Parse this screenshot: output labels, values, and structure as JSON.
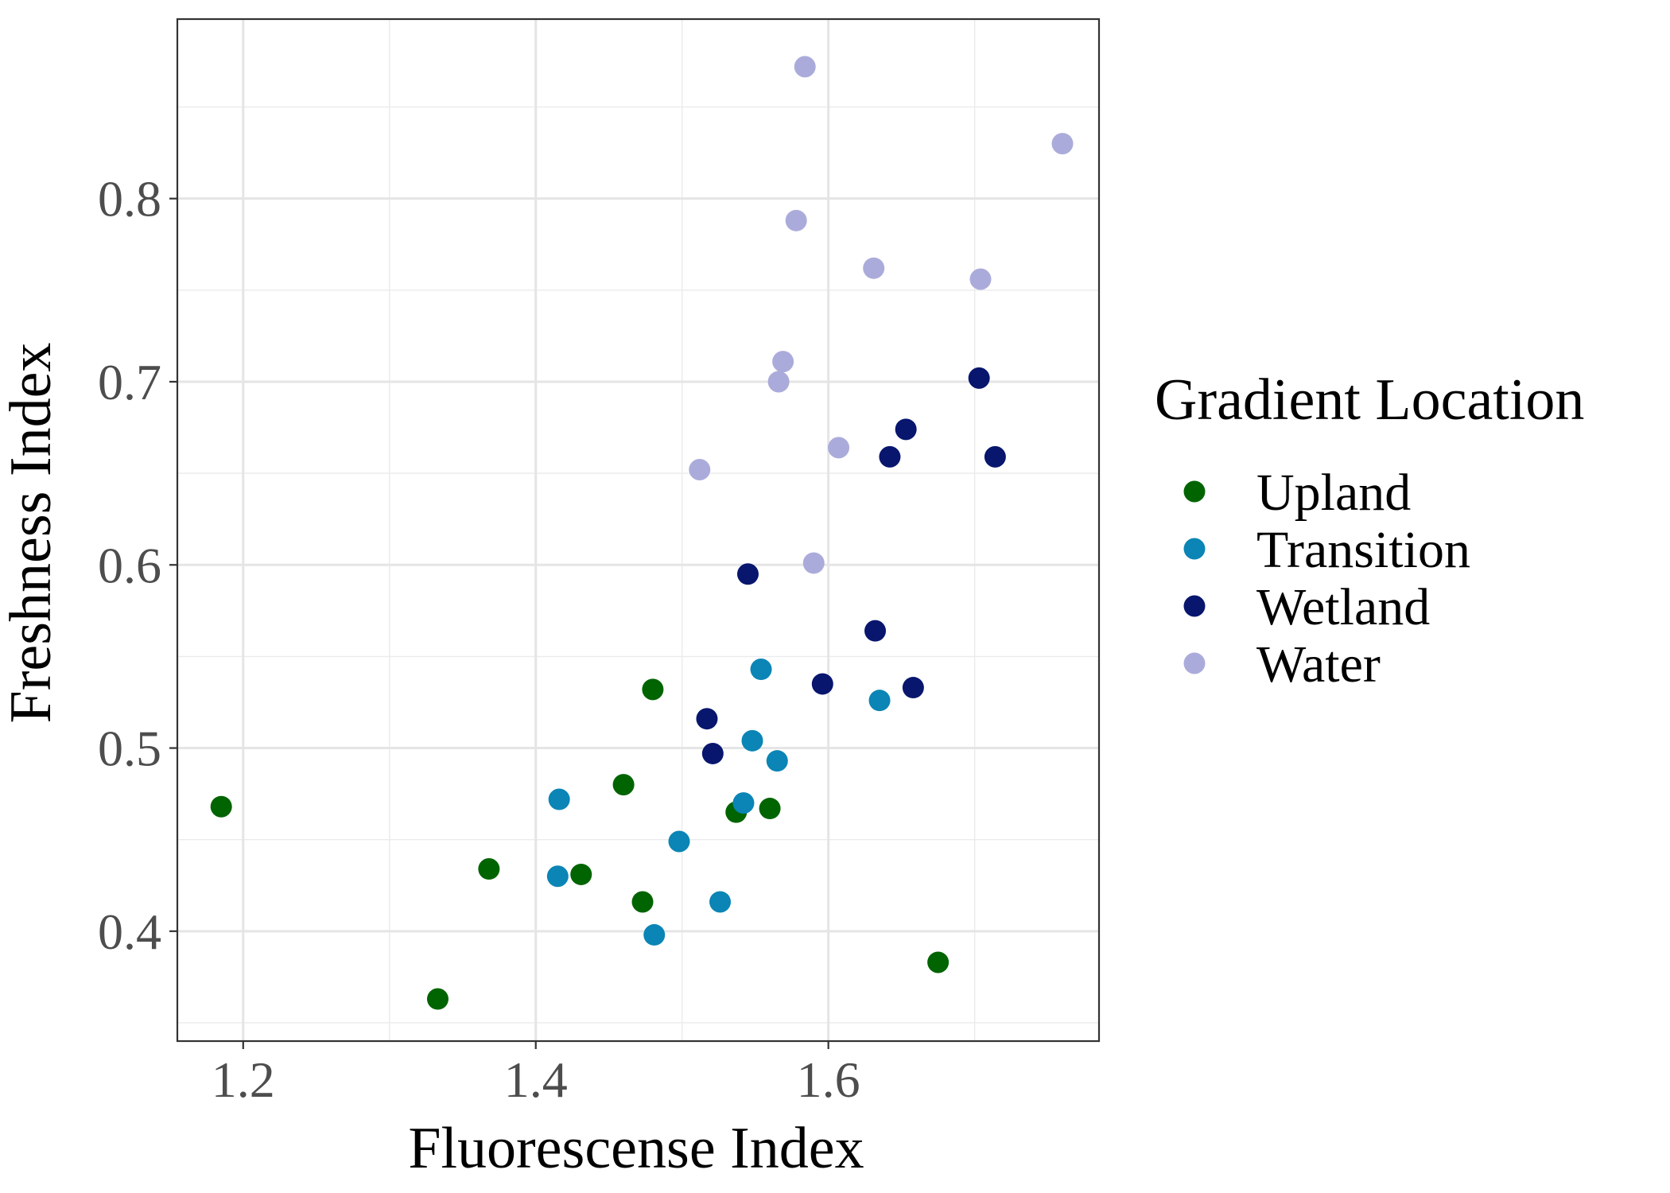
{
  "chart_data": {
    "type": "scatter",
    "xlabel": "Fluorescense Index",
    "ylabel": "Freshness Index",
    "xlim": [
      1.155,
      1.785
    ],
    "ylim": [
      0.34,
      0.898
    ],
    "x_ticks": [
      1.2,
      1.4,
      1.6
    ],
    "x_tick_labels": [
      "1.2",
      "1.4",
      "1.6"
    ],
    "y_ticks": [
      0.4,
      0.5,
      0.6,
      0.7,
      0.8
    ],
    "y_tick_labels": [
      "0.4",
      "0.5",
      "0.6",
      "0.7",
      "0.8"
    ],
    "grid": true,
    "legend": {
      "title": "Gradient Location",
      "placement": "right"
    },
    "series": [
      {
        "name": "Upland",
        "color": "#006400",
        "points": [
          {
            "x": 1.185,
            "y": 0.468
          },
          {
            "x": 1.333,
            "y": 0.363
          },
          {
            "x": 1.368,
            "y": 0.434
          },
          {
            "x": 1.431,
            "y": 0.431
          },
          {
            "x": 1.46,
            "y": 0.48
          },
          {
            "x": 1.473,
            "y": 0.416
          },
          {
            "x": 1.48,
            "y": 0.532
          },
          {
            "x": 1.537,
            "y": 0.465
          },
          {
            "x": 1.56,
            "y": 0.467
          },
          {
            "x": 1.675,
            "y": 0.383
          }
        ]
      },
      {
        "name": "Transition",
        "color": "#0A85B5",
        "points": [
          {
            "x": 1.415,
            "y": 0.43
          },
          {
            "x": 1.416,
            "y": 0.472
          },
          {
            "x": 1.481,
            "y": 0.398
          },
          {
            "x": 1.498,
            "y": 0.449
          },
          {
            "x": 1.526,
            "y": 0.416
          },
          {
            "x": 1.542,
            "y": 0.47
          },
          {
            "x": 1.548,
            "y": 0.504
          },
          {
            "x": 1.554,
            "y": 0.543
          },
          {
            "x": 1.565,
            "y": 0.493
          },
          {
            "x": 1.635,
            "y": 0.526
          }
        ]
      },
      {
        "name": "Wetland",
        "color": "#08166E",
        "points": [
          {
            "x": 1.517,
            "y": 0.516
          },
          {
            "x": 1.521,
            "y": 0.497
          },
          {
            "x": 1.545,
            "y": 0.595
          },
          {
            "x": 1.596,
            "y": 0.535
          },
          {
            "x": 1.632,
            "y": 0.564
          },
          {
            "x": 1.642,
            "y": 0.659
          },
          {
            "x": 1.653,
            "y": 0.674
          },
          {
            "x": 1.658,
            "y": 0.533
          },
          {
            "x": 1.703,
            "y": 0.702
          },
          {
            "x": 1.714,
            "y": 0.659
          }
        ]
      },
      {
        "name": "Water",
        "color": "#ABABDB",
        "points": [
          {
            "x": 1.512,
            "y": 0.652
          },
          {
            "x": 1.566,
            "y": 0.7
          },
          {
            "x": 1.569,
            "y": 0.711
          },
          {
            "x": 1.578,
            "y": 0.788
          },
          {
            "x": 1.584,
            "y": 0.872
          },
          {
            "x": 1.59,
            "y": 0.601
          },
          {
            "x": 1.607,
            "y": 0.664
          },
          {
            "x": 1.631,
            "y": 0.762
          },
          {
            "x": 1.704,
            "y": 0.756
          },
          {
            "x": 1.76,
            "y": 0.83
          }
        ]
      }
    ]
  }
}
